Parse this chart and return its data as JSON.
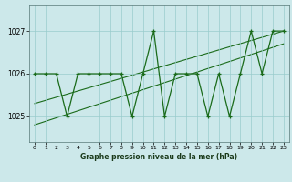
{
  "x": [
    0,
    1,
    2,
    3,
    4,
    5,
    6,
    7,
    8,
    9,
    10,
    11,
    12,
    13,
    14,
    15,
    16,
    17,
    18,
    19,
    20,
    21,
    22,
    23
  ],
  "y": [
    1026,
    1026,
    1026,
    1025,
    1026,
    1026,
    1026,
    1026,
    1026,
    1025,
    1026,
    1027,
    1025,
    1026,
    1026,
    1026,
    1025,
    1026,
    1025,
    1026,
    1027,
    1026,
    1027,
    1027
  ],
  "trend1_x": [
    0,
    23
  ],
  "trend1_y": [
    1025.3,
    1027.0
  ],
  "trend2_x": [
    0,
    23
  ],
  "trend2_y": [
    1024.8,
    1026.7
  ],
  "line_color": "#1a6b1a",
  "bg_color": "#cce8ea",
  "grid_color": "#99cccc",
  "xlabel": "Graphe pression niveau de la mer (hPa)",
  "yticks": [
    1025,
    1026,
    1027
  ],
  "ylim": [
    1024.4,
    1027.6
  ],
  "xlim": [
    -0.5,
    23.5
  ],
  "xticks": [
    0,
    1,
    2,
    3,
    4,
    5,
    6,
    7,
    8,
    9,
    10,
    11,
    12,
    13,
    14,
    15,
    16,
    17,
    18,
    19,
    20,
    21,
    22,
    23
  ]
}
